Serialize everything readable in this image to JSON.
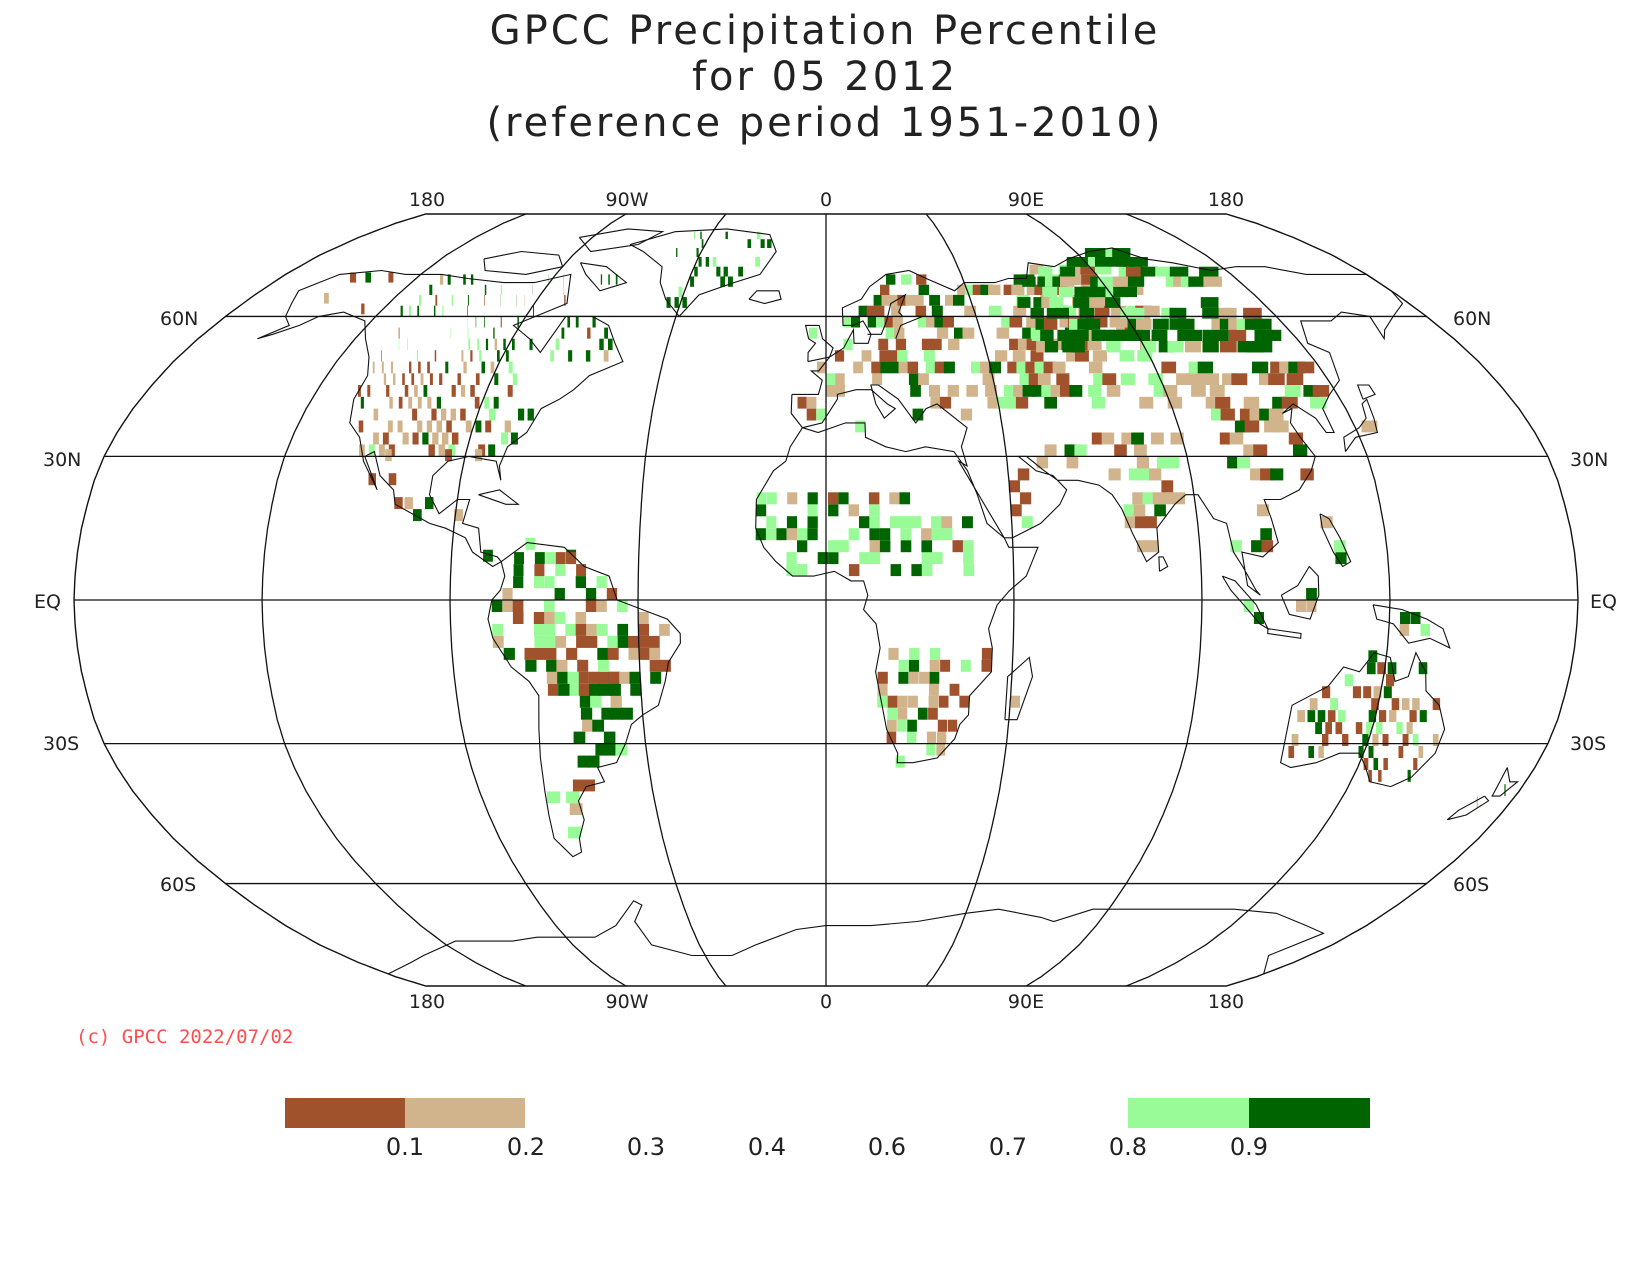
{
  "title": {
    "line1": "GPCC Precipitation Percentile",
    "line2": "for 05 2012",
    "line3": "(reference period 1951-2010)"
  },
  "map": {
    "projection": "Robinson",
    "graticule_lon": [
      -180,
      -135,
      -90,
      -45,
      0,
      45,
      90,
      135,
      180
    ],
    "graticule_lat": [
      60,
      30,
      0,
      -30,
      -60
    ],
    "lon_labels_top": [
      "180",
      "90W",
      "0",
      "90E",
      "180"
    ],
    "lon_labels_bottom": [
      "180",
      "90W",
      "0",
      "90E",
      "180"
    ],
    "lat_labels_left": [
      "60N",
      "30N",
      "EQ",
      "30S",
      "60S"
    ],
    "lat_labels_right": [
      "60N",
      "30N",
      "EQ",
      "30S",
      "60S"
    ]
  },
  "copyright": "(c) GPCC 2022/07/02",
  "legend": {
    "bins": [
      {
        "range": "< 0.1",
        "color": "#a0522d"
      },
      {
        "range": "0.1 - 0.2",
        "color": "#d2b48c"
      },
      {
        "range": "0.2 - 0.8",
        "color": "#ffffff"
      },
      {
        "range": "0.8 - 0.9",
        "color": "#98fb98"
      },
      {
        "range": "> 0.9",
        "color": "#006400"
      }
    ],
    "tick_labels": [
      "0.1",
      "0.2",
      "0.3",
      "0.4",
      "0.6",
      "0.7",
      "0.8",
      "0.9"
    ]
  },
  "colors": {
    "very_dry": "#a0522d",
    "dry": "#d2b48c",
    "wet": "#98fb98",
    "very_wet": "#006400",
    "copyright": "#ff4d4d"
  }
}
